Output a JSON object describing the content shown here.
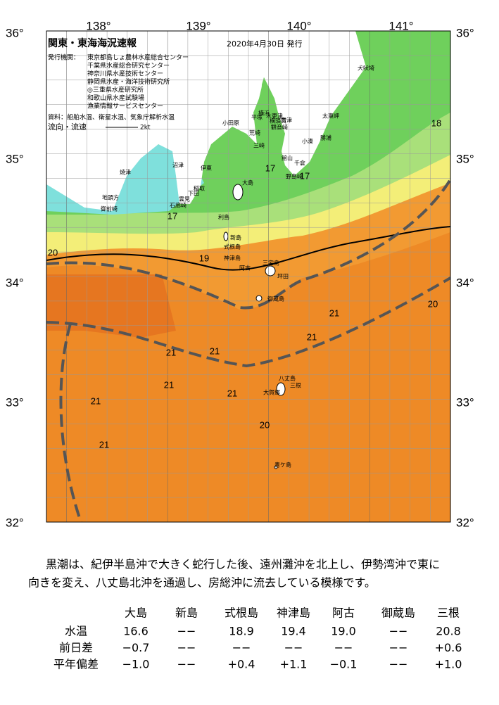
{
  "header": {
    "title": "関東・東海海況速報",
    "date": "2020年4月30日 発行",
    "issuer_label": "発行機関：",
    "issuers": [
      "東京都島しょ農林水産総合センター",
      "千葉県水産総合研究センター",
      "神奈川県水産技術センター",
      "静岡県水産・海洋技術研究所",
      "◎三重県水産研究所",
      "和歌山県水産試験場",
      "漁業情報サービスセンター"
    ],
    "sources": "資料：船舶水温、衛星水温、気象庁解析水温",
    "flow_label": "流向・流速",
    "flow_scale": "2kt"
  },
  "axes": {
    "lon": [
      "138°",
      "139°",
      "140°",
      "141°"
    ],
    "lat": [
      "36°",
      "35°",
      "34°",
      "33°",
      "32°"
    ]
  },
  "contour_labels": [
    "20",
    "17",
    "19",
    "17",
    "17",
    "18",
    "20",
    "21",
    "21",
    "21",
    "21",
    "21",
    "21",
    "21",
    "21",
    "20"
  ],
  "places": [
    "犬吠埼",
    "太東岬",
    "勝浦",
    "小湊",
    "千倉",
    "館山",
    "野島崎",
    "富津",
    "木更津",
    "横浜",
    "横須賀",
    "観音崎",
    "平塚",
    "荒崎",
    "三崎",
    "小田原",
    "伊東",
    "沼津",
    "焼津",
    "稲取",
    "下田",
    "雲見",
    "石廊崎",
    "地頭方",
    "御前崎",
    "大島",
    "利島",
    "新島",
    "式根島",
    "神津島",
    "三宅島",
    "阿古",
    "坪田",
    "御蔵島",
    "八丈島",
    "三根",
    "大賀郷",
    "青ケ島"
  ],
  "summary_lines": [
    "黒潮は、紀伊半島沖で大きく蛇行した後、遠州灘沖を北上し、伊勢湾沖で東に",
    "向きを変え、八丈島北沖を通過し、房総沖に流去している模様です。"
  ],
  "table": {
    "columns": [
      "大島",
      "新島",
      "式根島",
      "神津島",
      "阿古",
      "御蔵島",
      "三根"
    ],
    "rows": [
      {
        "label": "水温",
        "values": [
          "16.6",
          "−−",
          "18.9",
          "19.4",
          "19.0",
          "−−",
          "20.8"
        ]
      },
      {
        "label": "前日差",
        "values": [
          "−0.7",
          "−−",
          "−−",
          "−−",
          "−−",
          "−−",
          "+0.6"
        ]
      },
      {
        "label": "平年偏差",
        "values": [
          "−1.0",
          "−−",
          "+0.4",
          "+1.1",
          "−0.1",
          "−−",
          "+1.0"
        ]
      }
    ]
  }
}
